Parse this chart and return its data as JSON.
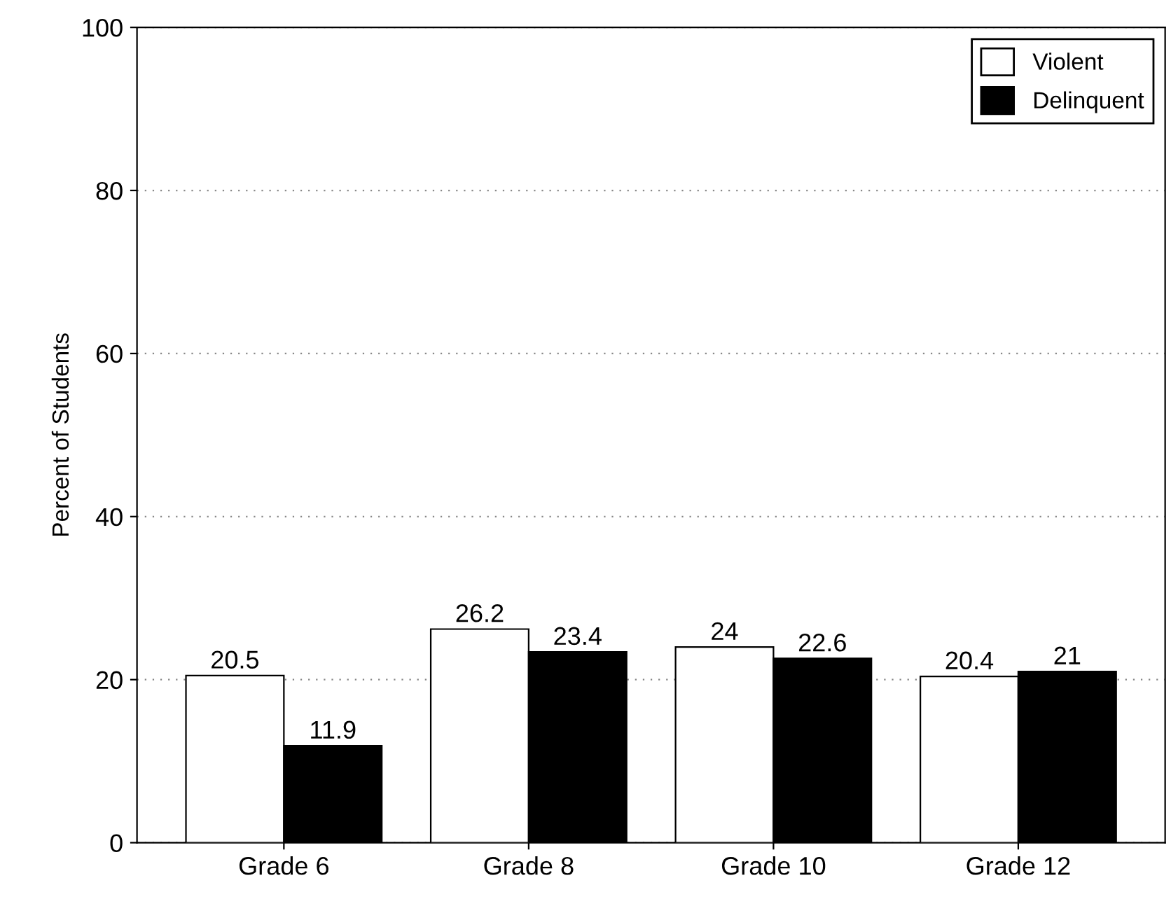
{
  "chart_data": {
    "type": "bar",
    "ylabel": "Percent of Students",
    "categories": [
      "Grade 6",
      "Grade 8",
      "Grade 10",
      "Grade 12"
    ],
    "series": [
      {
        "name": "Violent",
        "color": "#ffffff",
        "values": [
          20.5,
          26.2,
          24,
          20.4
        ]
      },
      {
        "name": "Delinquent",
        "color": "#000000",
        "values": [
          11.9,
          23.4,
          22.6,
          21
        ]
      }
    ],
    "ylim": [
      0,
      100
    ],
    "yticks": [
      0,
      20,
      40,
      60,
      80,
      100
    ],
    "grid": "y",
    "legend": "top right",
    "data_labels": true
  }
}
